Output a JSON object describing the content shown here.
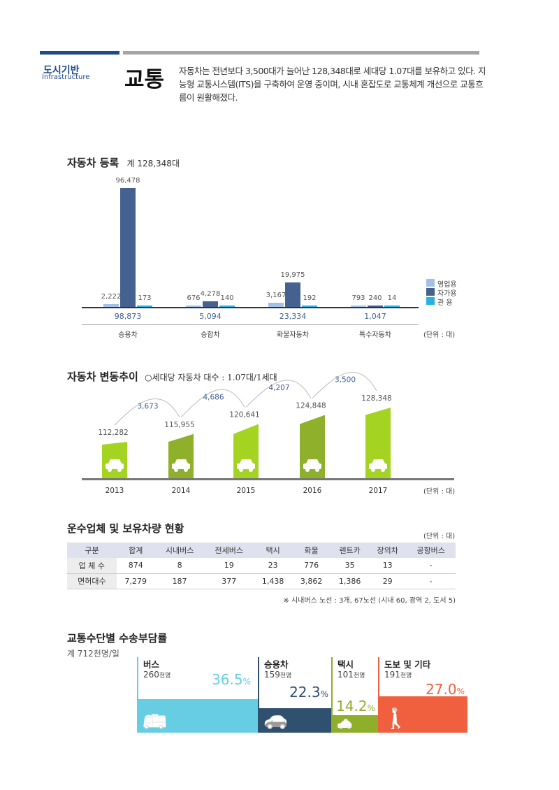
{
  "header": {
    "section_ko": "도시기반",
    "section_en": "Infrastructure",
    "title": "교통",
    "intro": "자동차는 전년보다 3,500대가 늘어난 128,348대로 세대당 1.07대를 보유하고 있다. 지능형 교통시스템(ITS)을 구축하여 운영 중이며, 시내 혼잡도로 교통체계 개선으로 교통흐름이 원활해졌다."
  },
  "colors": {
    "business": "#a3c1e6",
    "private": "#44618f",
    "government": "#2bb0e6",
    "green_light": "#a5d321",
    "green_dark": "#8fb02a",
    "bus": "#67cde3",
    "car": "#2f506e",
    "taxi": "#8fae2a",
    "walk": "#f0603e"
  },
  "chart_data": [
    {
      "type": "bar",
      "title": "자동차 등록",
      "subtitle": "계 128,348대",
      "categories": [
        "승용차",
        "승합차",
        "화물자동차",
        "특수자동차"
      ],
      "series": [
        {
          "name": "영업용",
          "values": [
            2222,
            676,
            3167,
            793
          ]
        },
        {
          "name": "자가용",
          "values": [
            96478,
            4278,
            19975,
            240
          ]
        },
        {
          "name": "관 용",
          "values": [
            173,
            140,
            192,
            14
          ]
        }
      ],
      "labels": [
        [
          "2,222",
          "96,478",
          "173"
        ],
        [
          "676",
          "4,278",
          "140"
        ],
        [
          "3,167",
          "19,975",
          "192"
        ],
        [
          "793",
          "240",
          "14"
        ]
      ],
      "totals": [
        "98,873",
        "5,094",
        "23,334",
        "1,047"
      ],
      "unit": "(단위 : 대)",
      "legend": "right"
    },
    {
      "type": "bar",
      "title": "자동차 변동추이",
      "subtitle": "세대당 자동차 대수 : 1.07대/1세대",
      "categories": [
        "2013",
        "2014",
        "2015",
        "2016",
        "2017"
      ],
      "values": [
        112282,
        115955,
        120641,
        124848,
        128348
      ],
      "labels": [
        "112,282",
        "115,955",
        "120,641",
        "124,848",
        "128,348"
      ],
      "increments": [
        "3,673",
        "4,686",
        "4,207",
        "3,500"
      ],
      "unit": "(단위 : 대)"
    }
  ],
  "table": {
    "title": "운수업체 및 보유차량 현황",
    "unit": "(단위 : 대)",
    "headers": [
      "구분",
      "합계",
      "시내버스",
      "전세버스",
      "택시",
      "화물",
      "렌트카",
      "장의차",
      "공항버스"
    ],
    "rows": [
      [
        "업 체 수",
        "874",
        "8",
        "19",
        "23",
        "776",
        "35",
        "13",
        "-"
      ],
      [
        "면허대수",
        "7,279",
        "187",
        "377",
        "1,438",
        "3,862",
        "1,386",
        "29",
        "-"
      ]
    ],
    "note": "※ 시내버스 노선 : 3개, 67노선 (시내 60, 광역 2, 도서 5)"
  },
  "modal": {
    "title": "교통수단별 수송부담률",
    "total": "계 712천명/일",
    "unit_label": "천명",
    "pct_sign": "%",
    "items": [
      {
        "name": "버스",
        "count": "260",
        "pct": "36.5"
      },
      {
        "name": "승용차",
        "count": "159",
        "pct": "22.3"
      },
      {
        "name": "택시",
        "count": "101",
        "pct": "14.2"
      },
      {
        "name": "도보 및 기타",
        "count": "191",
        "pct": "27.0"
      }
    ]
  }
}
